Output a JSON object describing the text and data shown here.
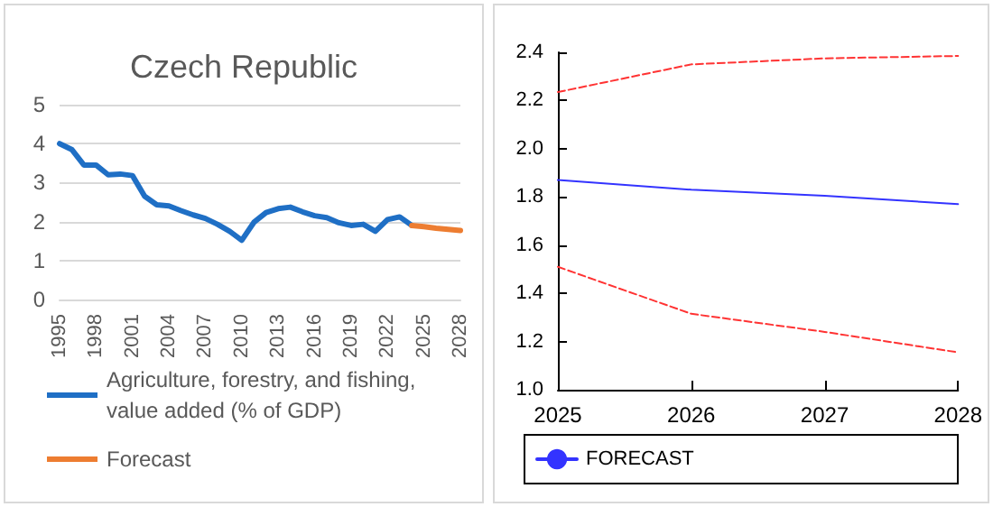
{
  "chart_data": [
    {
      "type": "line",
      "title": "Czech Republic",
      "categories": [
        "1995",
        null,
        null,
        "1998",
        null,
        null,
        "2001",
        null,
        null,
        "2004",
        null,
        null,
        "2007",
        null,
        null,
        "2010",
        null,
        null,
        "2013",
        null,
        null,
        "2016",
        null,
        null,
        "2019",
        null,
        null,
        "2022",
        null,
        null,
        "2025",
        null,
        null,
        "2028"
      ],
      "series": [
        {
          "name": "Agriculture, forestry, and fishing, value added (% of GDP)",
          "color": "#1f6fc5",
          "values": [
            4.0,
            3.85,
            3.45,
            3.45,
            3.2,
            3.22,
            3.18,
            2.65,
            2.43,
            2.4,
            2.28,
            2.17,
            2.08,
            1.93,
            1.75,
            1.52,
            1.98,
            2.23,
            2.33,
            2.37,
            2.25,
            2.15,
            2.1,
            1.97,
            1.9,
            1.93,
            1.75,
            2.05,
            2.12,
            1.9,
            null,
            null,
            null,
            null
          ]
        },
        {
          "name": "Forecast",
          "color": "#ed7d31",
          "values": [
            null,
            null,
            null,
            null,
            null,
            null,
            null,
            null,
            null,
            null,
            null,
            null,
            null,
            null,
            null,
            null,
            null,
            null,
            null,
            null,
            null,
            null,
            null,
            null,
            null,
            null,
            null,
            null,
            null,
            1.9,
            1.87,
            1.83,
            1.8,
            1.77
          ]
        }
      ],
      "ylim": [
        0,
        5
      ],
      "yticks": [
        0,
        1,
        2,
        3,
        4,
        5
      ],
      "grid": "y",
      "legend": "bottom",
      "marker": "none",
      "line_style": "solid"
    },
    {
      "type": "line",
      "x": [
        2025,
        2026,
        2027,
        2028
      ],
      "series": [
        {
          "name": "FORECAST",
          "color": "#3333ff",
          "values": [
            1.87,
            1.83,
            1.805,
            1.77
          ]
        },
        {
          "color": "#ff3333",
          "values": [
            2.235,
            2.35,
            2.375,
            2.385
          ],
          "line_style": "dashed"
        },
        {
          "color": "#ff3333",
          "values": [
            1.51,
            1.315,
            1.24,
            1.155
          ],
          "line_style": "dashed"
        }
      ],
      "xlim": [
        2025,
        2028
      ],
      "xticks": [
        2025,
        2026,
        2027,
        2028
      ],
      "ylim": [
        1,
        2.4
      ],
      "yticks": [
        {
          "value": 1,
          "label": "1.0"
        },
        1.2,
        1.4,
        1.6,
        1.8,
        {
          "value": 2,
          "label": "2.0"
        },
        2.2,
        2.4
      ],
      "grid": false,
      "legend": "bottom",
      "marker": "none",
      "line_style": "solid"
    }
  ]
}
